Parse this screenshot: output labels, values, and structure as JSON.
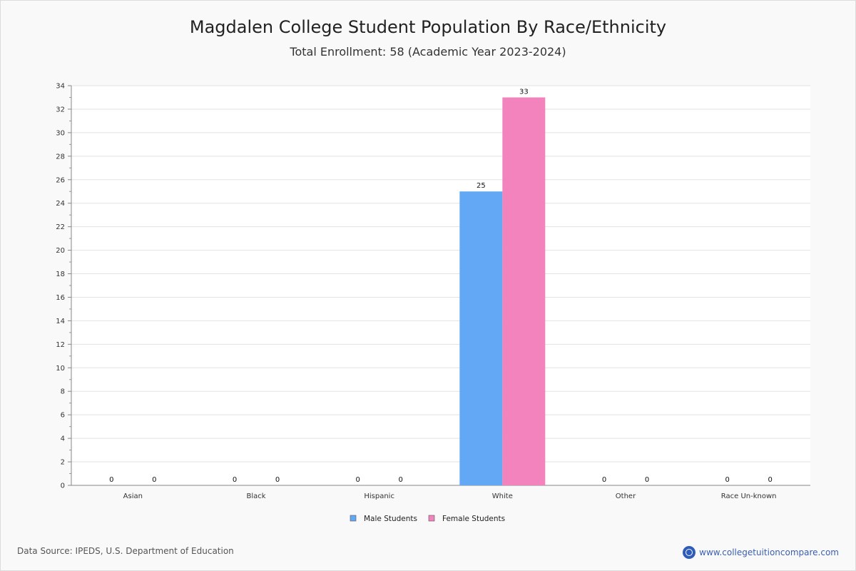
{
  "page": {
    "title": "Magdalen College Student Population By Race/Ethnicity",
    "subtitle": "Total Enrollment: 58 (Academic Year 2023-2024)",
    "source": "Data Source: IPEDS, U.S. Department of Education",
    "brand": "www.collegetuitioncompare.com"
  },
  "chart_data": {
    "type": "bar",
    "categories": [
      "Asian",
      "Black",
      "Hispanic",
      "White",
      "Other",
      "Race Un-known"
    ],
    "series": [
      {
        "name": "Male Students",
        "color": "#62a8f4",
        "values": [
          0,
          0,
          0,
          25,
          0,
          0
        ]
      },
      {
        "name": "Female Students",
        "color": "#f283bc",
        "values": [
          0,
          0,
          0,
          33,
          0,
          0
        ]
      }
    ],
    "ylim": [
      0,
      34
    ],
    "yticks": [
      0,
      2,
      4,
      6,
      8,
      10,
      12,
      14,
      16,
      18,
      20,
      22,
      24,
      26,
      28,
      30,
      32,
      34
    ],
    "grid": true,
    "legend": "bottom-center",
    "data_labels": true
  }
}
